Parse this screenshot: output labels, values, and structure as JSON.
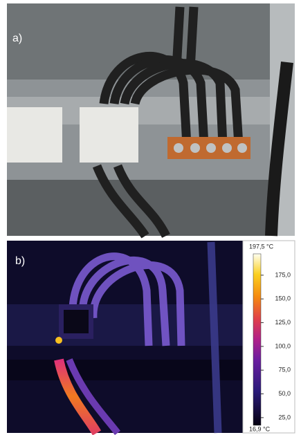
{
  "panel_a": {
    "label": "a)"
  },
  "panel_b": {
    "label": "b)",
    "colorbar": {
      "max": {
        "value": 197.5,
        "label": "197,5 °C"
      },
      "min": {
        "value": 16.9,
        "label": "16,9 °C"
      },
      "ticks": [
        {
          "value": 175,
          "label": "175,0"
        },
        {
          "value": 150,
          "label": "150,0"
        },
        {
          "value": 125,
          "label": "125,0"
        },
        {
          "value": 100,
          "label": "100,0"
        },
        {
          "value": 75,
          "label": "75,0"
        },
        {
          "value": 50,
          "label": "50,0"
        },
        {
          "value": 25,
          "label": "25,0"
        }
      ]
    }
  }
}
